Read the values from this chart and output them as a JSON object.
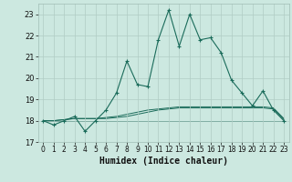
{
  "xlabel": "Humidex (Indice chaleur)",
  "bg_color": "#cce8e0",
  "grid_color": "#aaccC4",
  "line_color": "#1a6b5a",
  "x": [
    0,
    1,
    2,
    3,
    4,
    5,
    6,
    7,
    8,
    9,
    10,
    11,
    12,
    13,
    14,
    15,
    16,
    17,
    18,
    19,
    20,
    21,
    22,
    23
  ],
  "y_main": [
    18.0,
    17.8,
    18.0,
    18.2,
    17.5,
    18.0,
    18.5,
    19.3,
    20.8,
    19.7,
    19.6,
    21.8,
    23.2,
    21.5,
    23.0,
    21.8,
    21.9,
    21.2,
    19.9,
    19.3,
    18.7,
    19.4,
    18.5,
    18.0
  ],
  "y_flat1": [
    18.0,
    18.0,
    18.0,
    18.0,
    18.0,
    18.0,
    18.0,
    18.0,
    18.0,
    18.0,
    18.0,
    18.0,
    18.0,
    18.0,
    18.0,
    18.0,
    18.0,
    18.0,
    18.0,
    18.0,
    18.0,
    18.0,
    18.0,
    18.0
  ],
  "y_ramp1": [
    18.0,
    18.0,
    18.05,
    18.1,
    18.1,
    18.1,
    18.15,
    18.2,
    18.3,
    18.4,
    18.5,
    18.55,
    18.6,
    18.65,
    18.65,
    18.65,
    18.65,
    18.65,
    18.65,
    18.65,
    18.65,
    18.65,
    18.6,
    18.1
  ],
  "y_ramp2": [
    18.0,
    18.0,
    18.05,
    18.1,
    18.1,
    18.1,
    18.1,
    18.15,
    18.2,
    18.3,
    18.4,
    18.5,
    18.55,
    18.6,
    18.6,
    18.6,
    18.6,
    18.6,
    18.6,
    18.6,
    18.6,
    18.6,
    18.55,
    18.05
  ],
  "ylim": [
    17.0,
    23.5
  ],
  "yticks": [
    17,
    18,
    19,
    20,
    21,
    22,
    23
  ],
  "xlim": [
    -0.5,
    23.5
  ],
  "xticks": [
    0,
    1,
    2,
    3,
    4,
    5,
    6,
    7,
    8,
    9,
    10,
    11,
    12,
    13,
    14,
    15,
    16,
    17,
    18,
    19,
    20,
    21,
    22,
    23
  ]
}
